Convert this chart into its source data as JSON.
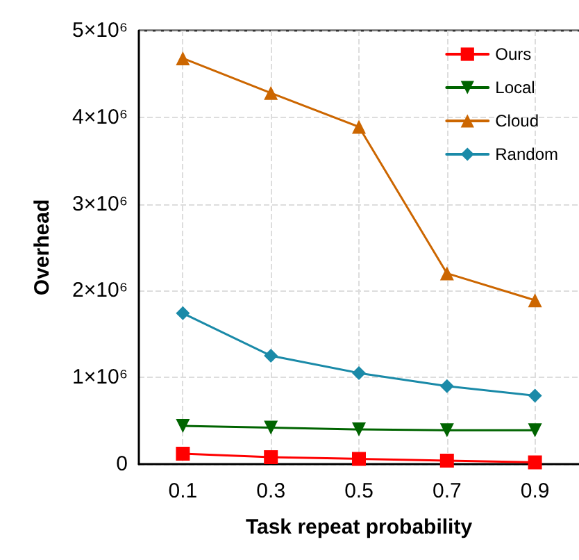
{
  "chart_data": {
    "type": "line",
    "xlabel": "Task repeat probability",
    "ylabel": "Overhead",
    "x": [
      0.1,
      0.3,
      0.5,
      0.7,
      0.9
    ],
    "series": [
      {
        "name": "Ours",
        "color": "#ff0000",
        "marker": "square",
        "values": [
          120000,
          80000,
          60000,
          40000,
          20000
        ]
      },
      {
        "name": "Local",
        "color": "#006400",
        "marker": "triangle-down",
        "values": [
          440000,
          420000,
          400000,
          390000,
          390000
        ]
      },
      {
        "name": "Cloud",
        "color": "#cc6600",
        "marker": "triangle",
        "values": [
          4680000,
          4280000,
          3890000,
          2200000,
          1890000
        ]
      },
      {
        "name": "Random",
        "color": "#1a8aa8",
        "marker": "diamond",
        "values": [
          1740000,
          1250000,
          1050000,
          900000,
          790000
        ]
      }
    ],
    "xlim": [
      0,
      1
    ],
    "xticks": [
      0.1,
      0.3,
      0.5,
      0.7,
      0.9
    ],
    "ylim": [
      0,
      5000000
    ],
    "yticks": [
      0,
      {
        "value": 1000000,
        "label": "1×10⁶"
      },
      {
        "value": 2000000,
        "label": "2×10⁶"
      },
      {
        "value": 3000000,
        "label": "3×10⁶"
      },
      {
        "value": 4000000,
        "label": "4×10⁶"
      },
      {
        "value": 5000000,
        "label": "5×10⁶"
      }
    ],
    "grid": true,
    "legend": "top right",
    "line_style": "solid"
  }
}
